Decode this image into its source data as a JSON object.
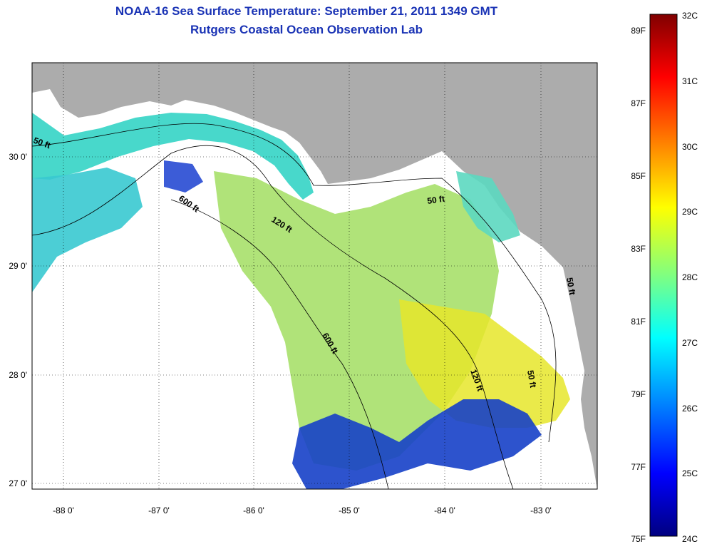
{
  "header": {
    "title": "NOAA-16 Sea Surface Temperature:  September 21, 2011 1349 GMT",
    "subtitle": "Rutgers Coastal Ocean Observation Lab"
  },
  "map": {
    "lon_ticks": [
      "-88 0'",
      "-87 0'",
      "-86 0'",
      "-85 0'",
      "-84 0'",
      "-83 0'"
    ],
    "lat_ticks": [
      "30 0'",
      "29 0'",
      "28 0'",
      "27 0'"
    ],
    "contour_labels": [
      "50 ft",
      "600 ft",
      "120 ft",
      "50 ft",
      "600 ft",
      "120 ft",
      "50 ft",
      "50 ft"
    ]
  },
  "colorbar": {
    "fahrenheit": [
      "89F",
      "87F",
      "85F",
      "83F",
      "81F",
      "79F",
      "77F",
      "75F"
    ],
    "celsius": [
      "32C",
      "31C",
      "30C",
      "29C",
      "28C",
      "27C",
      "26C",
      "25C",
      "24C"
    ]
  },
  "colors": {
    "title": "#1a33b5",
    "land": "#acacac",
    "nodata": "#ffffff"
  }
}
